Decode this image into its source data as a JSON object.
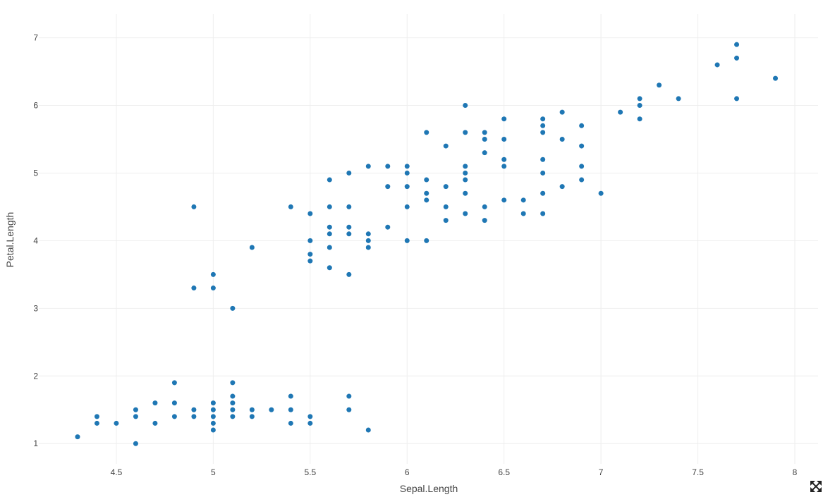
{
  "chart_data": {
    "type": "scatter",
    "xlabel": "Sepal.Length",
    "ylabel": "Petal.Length",
    "xlim": [
      4.1,
      8.12
    ],
    "ylim": [
      0.7,
      7.35
    ],
    "xticks": [
      4.5,
      5,
      5.5,
      6,
      6.5,
      7,
      7.5,
      8
    ],
    "yticks": [
      1,
      2,
      3,
      4,
      5,
      6,
      7
    ],
    "grid": true,
    "marker_color": "#1f77b4",
    "points": [
      [
        4.3,
        1.1
      ],
      [
        4.4,
        1.3
      ],
      [
        4.4,
        1.4
      ],
      [
        4.5,
        1.3
      ],
      [
        4.6,
        1.0
      ],
      [
        4.6,
        1.4
      ],
      [
        4.6,
        1.5
      ],
      [
        4.7,
        1.3
      ],
      [
        4.7,
        1.6
      ],
      [
        4.8,
        1.4
      ],
      [
        4.8,
        1.6
      ],
      [
        4.8,
        1.9
      ],
      [
        4.9,
        1.4
      ],
      [
        4.9,
        1.5
      ],
      [
        4.9,
        3.3
      ],
      [
        4.9,
        4.5
      ],
      [
        5.0,
        1.2
      ],
      [
        5.0,
        1.3
      ],
      [
        5.0,
        1.4
      ],
      [
        5.0,
        1.5
      ],
      [
        5.0,
        1.6
      ],
      [
        5.0,
        3.3
      ],
      [
        5.0,
        3.5
      ],
      [
        5.1,
        1.4
      ],
      [
        5.1,
        1.5
      ],
      [
        5.1,
        1.6
      ],
      [
        5.1,
        1.7
      ],
      [
        5.1,
        1.9
      ],
      [
        5.1,
        3.0
      ],
      [
        5.2,
        1.4
      ],
      [
        5.2,
        1.5
      ],
      [
        5.2,
        3.9
      ],
      [
        5.3,
        1.5
      ],
      [
        5.4,
        1.3
      ],
      [
        5.4,
        1.5
      ],
      [
        5.4,
        1.7
      ],
      [
        5.4,
        4.5
      ],
      [
        5.5,
        1.3
      ],
      [
        5.5,
        1.4
      ],
      [
        5.5,
        3.7
      ],
      [
        5.5,
        3.8
      ],
      [
        5.5,
        4.0
      ],
      [
        5.5,
        4.4
      ],
      [
        5.6,
        3.6
      ],
      [
        5.6,
        3.9
      ],
      [
        5.6,
        4.1
      ],
      [
        5.6,
        4.2
      ],
      [
        5.6,
        4.5
      ],
      [
        5.6,
        4.9
      ],
      [
        5.7,
        1.5
      ],
      [
        5.7,
        1.7
      ],
      [
        5.7,
        3.5
      ],
      [
        5.7,
        4.1
      ],
      [
        5.7,
        4.2
      ],
      [
        5.7,
        4.5
      ],
      [
        5.7,
        5.0
      ],
      [
        5.8,
        1.2
      ],
      [
        5.8,
        3.9
      ],
      [
        5.8,
        4.0
      ],
      [
        5.8,
        4.1
      ],
      [
        5.8,
        5.1
      ],
      [
        5.9,
        4.2
      ],
      [
        5.9,
        4.8
      ],
      [
        5.9,
        5.1
      ],
      [
        6.0,
        4.0
      ],
      [
        6.0,
        4.5
      ],
      [
        6.0,
        4.8
      ],
      [
        6.0,
        5.0
      ],
      [
        6.0,
        5.1
      ],
      [
        6.1,
        4.0
      ],
      [
        6.1,
        4.6
      ],
      [
        6.1,
        4.7
      ],
      [
        6.1,
        4.9
      ],
      [
        6.1,
        5.6
      ],
      [
        6.2,
        4.3
      ],
      [
        6.2,
        4.5
      ],
      [
        6.2,
        4.8
      ],
      [
        6.2,
        5.4
      ],
      [
        6.3,
        4.4
      ],
      [
        6.3,
        4.7
      ],
      [
        6.3,
        4.9
      ],
      [
        6.3,
        5.0
      ],
      [
        6.3,
        5.1
      ],
      [
        6.3,
        5.6
      ],
      [
        6.3,
        6.0
      ],
      [
        6.4,
        4.3
      ],
      [
        6.4,
        4.5
      ],
      [
        6.4,
        5.3
      ],
      [
        6.4,
        5.5
      ],
      [
        6.4,
        5.6
      ],
      [
        6.5,
        4.6
      ],
      [
        6.5,
        5.1
      ],
      [
        6.5,
        5.2
      ],
      [
        6.5,
        5.5
      ],
      [
        6.5,
        5.8
      ],
      [
        6.6,
        4.4
      ],
      [
        6.6,
        4.6
      ],
      [
        6.7,
        4.4
      ],
      [
        6.7,
        4.7
      ],
      [
        6.7,
        5.0
      ],
      [
        6.7,
        5.2
      ],
      [
        6.7,
        5.6
      ],
      [
        6.7,
        5.7
      ],
      [
        6.7,
        5.8
      ],
      [
        6.8,
        4.8
      ],
      [
        6.8,
        5.5
      ],
      [
        6.8,
        5.9
      ],
      [
        6.9,
        4.9
      ],
      [
        6.9,
        5.1
      ],
      [
        6.9,
        5.4
      ],
      [
        6.9,
        5.7
      ],
      [
        7.0,
        4.7
      ],
      [
        7.1,
        5.9
      ],
      [
        7.2,
        5.8
      ],
      [
        7.2,
        6.0
      ],
      [
        7.2,
        6.1
      ],
      [
        7.3,
        6.3
      ],
      [
        7.4,
        6.1
      ],
      [
        7.6,
        6.6
      ],
      [
        7.7,
        6.1
      ],
      [
        7.7,
        6.7
      ],
      [
        7.7,
        6.9
      ],
      [
        7.9,
        6.4
      ]
    ]
  },
  "controls": {
    "fullscreen_icon": "expand-arrows-icon"
  }
}
